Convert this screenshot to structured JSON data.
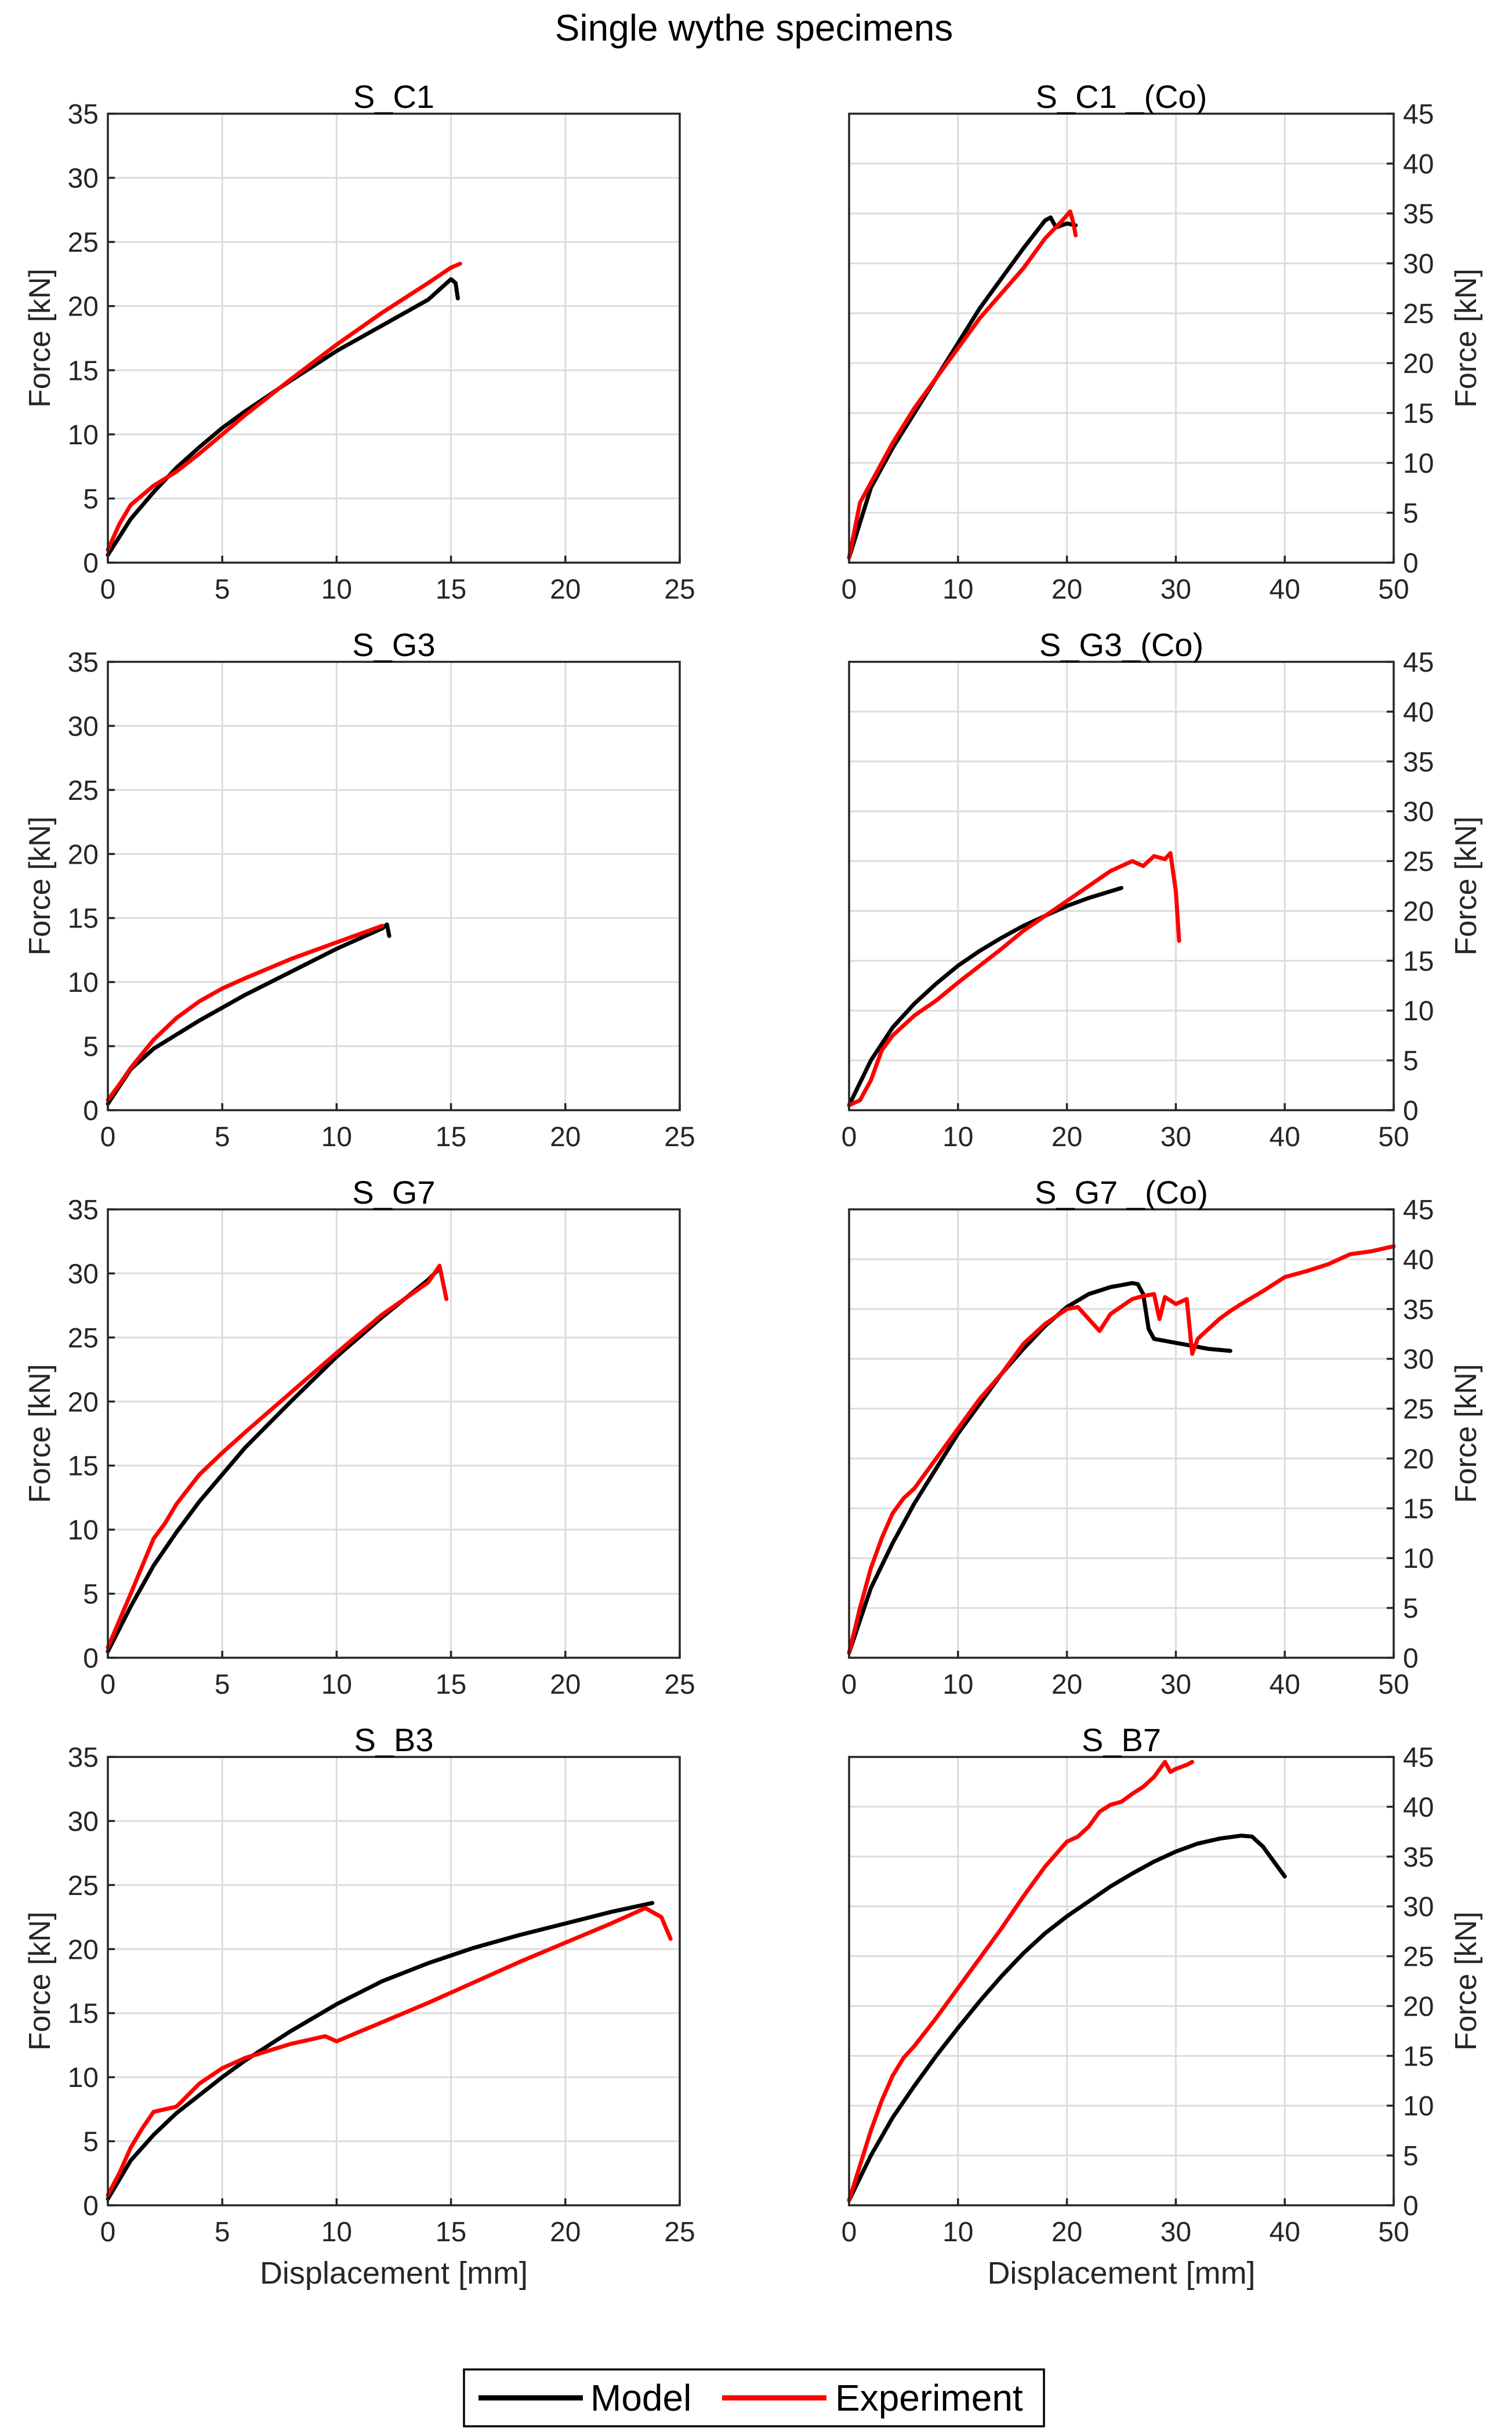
{
  "chart_data": {
    "title": "Single wythe specimens",
    "xlabel": "Displacement [mm]",
    "ylabel": "Force [kN]",
    "legend": {
      "position": "bottom-center",
      "entries": [
        {
          "name": "Model",
          "color": "#000000"
        },
        {
          "name": "Experiment",
          "color": "#ff0000"
        }
      ]
    },
    "panels": [
      {
        "type": "line",
        "title": "S_C1",
        "xlim": [
          0,
          25
        ],
        "ylim": [
          0,
          35
        ],
        "xticks": [
          0,
          5,
          10,
          15,
          20,
          25
        ],
        "yticks": [
          0,
          5,
          10,
          15,
          20,
          25,
          30,
          35
        ],
        "y_axis_side": "left",
        "show_ylabel": true,
        "show_xlabel": false,
        "grid": true,
        "series": [
          {
            "name": "Model",
            "color": "#000000",
            "x": [
              0,
              1,
              2,
              3,
              4,
              5,
              6,
              8,
              10,
              12,
              14,
              15,
              15.2,
              15.3
            ],
            "y": [
              0.6,
              3.4,
              5.5,
              7.4,
              9.0,
              10.5,
              11.8,
              14.2,
              16.5,
              18.5,
              20.5,
              22.1,
              21.8,
              20.6
            ]
          },
          {
            "name": "Experiment",
            "color": "#ff0000",
            "x": [
              0,
              0.5,
              1,
              2,
              3,
              4,
              5,
              6,
              8,
              10,
              12,
              14,
              15,
              15.4
            ],
            "y": [
              1.0,
              3.0,
              4.5,
              6.0,
              7.1,
              8.5,
              10.0,
              11.5,
              14.3,
              17.0,
              19.5,
              21.8,
              23.0,
              23.3
            ]
          }
        ]
      },
      {
        "type": "line",
        "title": "S_C1 _(Co)",
        "xlim": [
          0,
          50
        ],
        "ylim": [
          0,
          45
        ],
        "xticks": [
          0,
          10,
          20,
          30,
          40,
          50
        ],
        "yticks": [
          0,
          5,
          10,
          15,
          20,
          25,
          30,
          35,
          40,
          45
        ],
        "y_axis_side": "right",
        "show_ylabel": true,
        "show_xlabel": false,
        "grid": true,
        "series": [
          {
            "name": "Model",
            "color": "#000000",
            "x": [
              0,
              2,
              4,
              6,
              8,
              10,
              12,
              14,
              16,
              18,
              18.5,
              19,
              20,
              20.8
            ],
            "y": [
              0.5,
              7.5,
              11.5,
              15.0,
              18.5,
              22.0,
              25.5,
              28.5,
              31.5,
              34.3,
              34.6,
              33.6,
              34.0,
              33.8
            ]
          },
          {
            "name": "Experiment",
            "color": "#ff0000",
            "x": [
              0,
              1,
              2,
              4,
              6,
              8,
              10,
              12,
              14,
              16,
              18,
              19.5,
              20.3,
              20.6,
              20.8
            ],
            "y": [
              0.5,
              6.0,
              8.0,
              12.0,
              15.5,
              18.5,
              21.5,
              24.5,
              27.0,
              29.5,
              32.5,
              34.2,
              35.2,
              34.0,
              32.8
            ]
          }
        ]
      },
      {
        "type": "line",
        "title": "S_G3",
        "xlim": [
          0,
          25
        ],
        "ylim": [
          0,
          35
        ],
        "xticks": [
          0,
          5,
          10,
          15,
          20,
          25
        ],
        "yticks": [
          0,
          5,
          10,
          15,
          20,
          25,
          30,
          35
        ],
        "y_axis_side": "left",
        "show_ylabel": true,
        "show_xlabel": false,
        "grid": true,
        "series": [
          {
            "name": "Model",
            "color": "#000000",
            "x": [
              0,
              1,
              2,
              3,
              4,
              5,
              6,
              8,
              10,
              12,
              12.2,
              12.3
            ],
            "y": [
              0.5,
              3.2,
              4.8,
              5.9,
              7.0,
              8.0,
              9.0,
              10.8,
              12.6,
              14.2,
              14.5,
              13.6
            ]
          },
          {
            "name": "Experiment",
            "color": "#ff0000",
            "x": [
              0,
              0.5,
              1,
              2,
              3,
              4,
              5,
              6,
              8,
              10,
              12
            ],
            "y": [
              0.8,
              2.0,
              3.3,
              5.5,
              7.2,
              8.5,
              9.5,
              10.3,
              11.8,
              13.1,
              14.4
            ]
          }
        ]
      },
      {
        "type": "line",
        "title": "S_G3_(Co)",
        "xlim": [
          0,
          50
        ],
        "ylim": [
          0,
          45
        ],
        "xticks": [
          0,
          10,
          20,
          30,
          40,
          50
        ],
        "yticks": [
          0,
          5,
          10,
          15,
          20,
          25,
          30,
          35,
          40,
          45
        ],
        "y_axis_side": "right",
        "show_ylabel": true,
        "show_xlabel": false,
        "grid": true,
        "series": [
          {
            "name": "Model",
            "color": "#000000",
            "x": [
              0,
              2,
              4,
              6,
              8,
              10,
              12,
              14,
              16,
              18,
              20,
              22,
              25
            ],
            "y": [
              0.5,
              5.0,
              8.3,
              10.7,
              12.7,
              14.5,
              16.0,
              17.3,
              18.5,
              19.5,
              20.5,
              21.3,
              22.3
            ]
          },
          {
            "name": "Experiment",
            "color": "#ff0000",
            "x": [
              0,
              1,
              2,
              3,
              4,
              6,
              8,
              10,
              12,
              14,
              16,
              18,
              20,
              22,
              24,
              26,
              27,
              28,
              29,
              29.5,
              30,
              30.3
            ],
            "y": [
              0.5,
              1.0,
              3.0,
              6.0,
              7.5,
              9.5,
              11.0,
              12.8,
              14.5,
              16.2,
              18.0,
              19.5,
              21.0,
              22.5,
              24.0,
              25.0,
              24.5,
              25.5,
              25.2,
              25.8,
              22.0,
              17.0
            ]
          }
        ]
      },
      {
        "type": "line",
        "title": "S_G7",
        "xlim": [
          0,
          25
        ],
        "ylim": [
          0,
          35
        ],
        "xticks": [
          0,
          5,
          10,
          15,
          20,
          25
        ],
        "yticks": [
          0,
          5,
          10,
          15,
          20,
          25,
          30,
          35
        ],
        "y_axis_side": "left",
        "show_ylabel": true,
        "show_xlabel": false,
        "grid": true,
        "series": [
          {
            "name": "Model",
            "color": "#000000",
            "x": [
              0,
              1,
              2,
              3,
              4,
              5,
              6,
              8,
              10,
              12,
              14,
              14.5
            ],
            "y": [
              0.5,
              4.0,
              7.2,
              9.8,
              12.2,
              14.3,
              16.4,
              20.0,
              23.5,
              26.6,
              29.5,
              30.4
            ]
          },
          {
            "name": "Experiment",
            "color": "#ff0000",
            "x": [
              0,
              1,
              2,
              2.5,
              3,
              4,
              5,
              6,
              8,
              10,
              12,
              14,
              14.5,
              14.8
            ],
            "y": [
              0.8,
              5.0,
              9.3,
              10.5,
              12.0,
              14.3,
              16.0,
              17.6,
              20.7,
              23.8,
              26.8,
              29.3,
              30.6,
              28.0
            ]
          }
        ]
      },
      {
        "type": "line",
        "title": "S_G7 _(Co)",
        "xlim": [
          0,
          50
        ],
        "ylim": [
          0,
          45
        ],
        "xticks": [
          0,
          10,
          20,
          30,
          40,
          50
        ],
        "yticks": [
          0,
          5,
          10,
          15,
          20,
          25,
          30,
          35,
          40,
          45
        ],
        "y_axis_side": "right",
        "show_ylabel": true,
        "show_xlabel": false,
        "grid": true,
        "series": [
          {
            "name": "Model",
            "color": "#000000",
            "x": [
              0,
              2,
              4,
              6,
              8,
              10,
              12,
              14,
              16,
              18,
              20,
              22,
              24,
              25,
              26,
              26.5,
              27,
              27.5,
              28,
              29,
              31,
              33,
              35
            ],
            "y": [
              0.5,
              7.0,
              11.5,
              15.5,
              19.0,
              22.5,
              25.5,
              28.5,
              31.0,
              33.3,
              35.2,
              36.5,
              37.2,
              37.4,
              37.6,
              37.5,
              36.5,
              33.0,
              32.0,
              31.8,
              31.4,
              31.0,
              30.8
            ]
          },
          {
            "name": "Experiment",
            "color": "#ff0000",
            "x": [
              0,
              1,
              2,
              2.5,
              3,
              4,
              5,
              6,
              8,
              10,
              12,
              14,
              15,
              16,
              18,
              20,
              21,
              22,
              23,
              24,
              26,
              27,
              28,
              28.5,
              29,
              30,
              31,
              31.5,
              32,
              33,
              34,
              35,
              36,
              38,
              40,
              42,
              44,
              46,
              48,
              50
            ],
            "y": [
              0.5,
              5.0,
              9.0,
              10.5,
              12.0,
              14.5,
              16.0,
              17.0,
              20.0,
              23.0,
              26.0,
              28.5,
              30.0,
              31.5,
              33.5,
              35.0,
              35.2,
              34.0,
              32.8,
              34.5,
              36.0,
              36.3,
              36.5,
              34.0,
              36.2,
              35.5,
              36.0,
              30.5,
              32.0,
              33.0,
              34.0,
              34.8,
              35.5,
              36.8,
              38.2,
              38.8,
              39.5,
              40.5,
              40.8,
              41.3
            ]
          }
        ]
      },
      {
        "type": "line",
        "title": "S_B3",
        "xlim": [
          0,
          25
        ],
        "ylim": [
          0,
          35
        ],
        "xticks": [
          0,
          5,
          10,
          15,
          20,
          25
        ],
        "yticks": [
          0,
          5,
          10,
          15,
          20,
          25,
          30,
          35
        ],
        "y_axis_side": "left",
        "show_ylabel": true,
        "show_xlabel": true,
        "grid": true,
        "series": [
          {
            "name": "Model",
            "color": "#000000",
            "x": [
              0,
              1,
              2,
              3,
              4,
              5,
              6,
              8,
              10,
              12,
              14,
              16,
              18,
              20,
              22,
              23.8
            ],
            "y": [
              0.5,
              3.5,
              5.5,
              7.2,
              8.6,
              10.0,
              11.3,
              13.6,
              15.7,
              17.5,
              18.9,
              20.1,
              21.1,
              22.0,
              22.9,
              23.6
            ]
          },
          {
            "name": "Experiment",
            "color": "#ff0000",
            "x": [
              0,
              0.5,
              1,
              1.5,
              2,
              2.5,
              3,
              4,
              5,
              6,
              8,
              9.5,
              10,
              12,
              14,
              16,
              18,
              20,
              22,
              23.5,
              24.2,
              24.6
            ],
            "y": [
              0.8,
              2.5,
              4.5,
              6.0,
              7.3,
              7.5,
              7.7,
              9.5,
              10.7,
              11.5,
              12.6,
              13.2,
              12.8,
              14.3,
              15.8,
              17.4,
              19.0,
              20.5,
              22.0,
              23.2,
              22.5,
              20.8
            ]
          }
        ]
      },
      {
        "type": "line",
        "title": "S_B7",
        "xlim": [
          0,
          50
        ],
        "ylim": [
          0,
          45
        ],
        "xticks": [
          0,
          10,
          20,
          30,
          40,
          50
        ],
        "yticks": [
          0,
          5,
          10,
          15,
          20,
          25,
          30,
          35,
          40,
          45
        ],
        "y_axis_side": "right",
        "show_ylabel": true,
        "show_xlabel": true,
        "grid": true,
        "series": [
          {
            "name": "Model",
            "color": "#000000",
            "x": [
              0,
              2,
              4,
              6,
              8,
              10,
              12,
              14,
              16,
              18,
              20,
              22,
              24,
              26,
              28,
              30,
              32,
              34,
              36,
              37,
              38,
              39,
              40
            ],
            "y": [
              0.5,
              5.0,
              8.8,
              12.0,
              15.0,
              17.8,
              20.5,
              23.0,
              25.3,
              27.3,
              29.0,
              30.5,
              32.0,
              33.3,
              34.5,
              35.5,
              36.3,
              36.8,
              37.1,
              37.0,
              36.0,
              34.5,
              33.0
            ]
          },
          {
            "name": "Experiment",
            "color": "#ff0000",
            "x": [
              0,
              1,
              2,
              3,
              4,
              5,
              6,
              8,
              10,
              12,
              14,
              16,
              18,
              20,
              21,
              22,
              23,
              24,
              25,
              26,
              27,
              28,
              29,
              29.5,
              30,
              31,
              31.5
            ],
            "y": [
              0.5,
              4.0,
              7.5,
              10.5,
              13.0,
              14.8,
              16.0,
              18.8,
              21.8,
              24.8,
              27.8,
              31.0,
              34.0,
              36.5,
              37.0,
              38.0,
              39.5,
              40.2,
              40.5,
              41.3,
              42.0,
              43.0,
              44.5,
              43.5,
              43.8,
              44.2,
              44.5
            ]
          }
        ]
      }
    ]
  }
}
